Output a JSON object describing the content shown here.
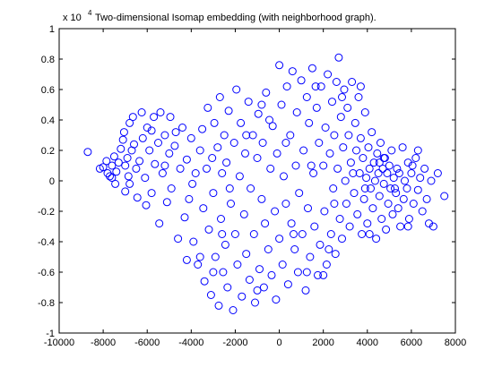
{
  "chart_data": {
    "type": "scatter",
    "title": "Two-dimensional Isomap embedding (with neighborhood graph).",
    "xlabel": "",
    "ylabel": "",
    "y_multiplier_base": "x 10",
    "y_multiplier_exponent": "4",
    "xlim": [
      -10000,
      8000
    ],
    "ylim": [
      -1,
      1
    ],
    "xticks": [
      -10000,
      -8000,
      -6000,
      -4000,
      -2000,
      0,
      2000,
      4000,
      6000,
      8000
    ],
    "yticks": [
      -1,
      -0.8,
      -0.6,
      -0.4,
      -0.2,
      0,
      0.2,
      0.4,
      0.6,
      0.8,
      1
    ],
    "xtick_labels": [
      "-10000",
      "-8000",
      "-6000",
      "-4000",
      "-2000",
      "0",
      "2000",
      "4000",
      "6000",
      "8000"
    ],
    "ytick_labels": [
      "-1",
      "-0.8",
      "-0.6",
      "-0.4",
      "-0.2",
      "0",
      "0.2",
      "0.4",
      "0.6",
      "0.8",
      "1"
    ],
    "marker": "circle-open",
    "grid": false,
    "legend": "none",
    "colors": {
      "marker": "#0000ff",
      "axes": "#000000",
      "background": "#ffffff"
    },
    "series": [
      {
        "points": [
          [
            -8700,
            0.19
          ],
          [
            -8150,
            0.08
          ],
          [
            -8000,
            0.09
          ],
          [
            -7850,
            0.13
          ],
          [
            -7700,
            0.03
          ],
          [
            -7600,
            0.1
          ],
          [
            -7500,
            0.16
          ],
          [
            -7600,
            0.02
          ],
          [
            -7450,
            -0.02
          ],
          [
            -7400,
            0.06
          ],
          [
            -7300,
            0.12
          ],
          [
            -7200,
            0.21
          ],
          [
            -7100,
            0.27
          ],
          [
            -7050,
            0.32
          ],
          [
            -7000,
            0.1
          ],
          [
            -7000,
            -0.07
          ],
          [
            -6900,
            0.15
          ],
          [
            -6850,
            0.03
          ],
          [
            -6800,
            0.38
          ],
          [
            -6700,
            0.2
          ],
          [
            -6650,
            0.42
          ],
          [
            -6600,
            0.24
          ],
          [
            -6500,
            0.08
          ],
          [
            -6450,
            -0.11
          ],
          [
            -6350,
            0.13
          ],
          [
            -6250,
            0.45
          ],
          [
            -6200,
            0.28
          ],
          [
            -6100,
            0.02
          ],
          [
            -6050,
            -0.16
          ],
          [
            -6000,
            0.35
          ],
          [
            -5900,
            0.2
          ],
          [
            -5800,
            -0.08
          ],
          [
            -5700,
            0.42
          ],
          [
            -5650,
            0.11
          ],
          [
            -5500,
            0.25
          ],
          [
            -5450,
            -0.28
          ],
          [
            -5400,
            0.45
          ],
          [
            -5300,
            0.05
          ],
          [
            -5200,
            0.3
          ],
          [
            -5100,
            -0.14
          ],
          [
            -5000,
            0.18
          ],
          [
            -4950,
            0.42
          ],
          [
            -4900,
            -0.05
          ],
          [
            -4750,
            0.23
          ],
          [
            -4600,
            -0.38
          ],
          [
            -4500,
            0.08
          ],
          [
            -4400,
            0.35
          ],
          [
            -4300,
            -0.24
          ],
          [
            -4200,
            0.14
          ],
          [
            -4100,
            -0.12
          ],
          [
            -4000,
            0.28
          ],
          [
            -3900,
            -0.4
          ],
          [
            -3800,
            0.05
          ],
          [
            -3700,
            -0.55
          ],
          [
            -3600,
            0.2
          ],
          [
            -3500,
            0.34
          ],
          [
            -3450,
            -0.18
          ],
          [
            -3400,
            -0.66
          ],
          [
            -3300,
            0.08
          ],
          [
            -3250,
            0.48
          ],
          [
            -3200,
            -0.32
          ],
          [
            -3100,
            -0.75
          ],
          [
            -3050,
            0.15
          ],
          [
            -3000,
            -0.08
          ],
          [
            -2950,
            0.38
          ],
          [
            -2900,
            -0.5
          ],
          [
            -2800,
            0.22
          ],
          [
            -2750,
            -0.82
          ],
          [
            -2700,
            0.55
          ],
          [
            -2650,
            -0.25
          ],
          [
            -2600,
            0.05
          ],
          [
            -2550,
            -0.6
          ],
          [
            -2500,
            0.3
          ],
          [
            -2450,
            -0.42
          ],
          [
            -2400,
            0.12
          ],
          [
            -2350,
            -0.7
          ],
          [
            -2300,
            0.46
          ],
          [
            -2200,
            -0.15
          ],
          [
            -2100,
            -0.85
          ],
          [
            -2050,
            0.25
          ],
          [
            -2000,
            -0.35
          ],
          [
            -1950,
            0.6
          ],
          [
            -1900,
            -0.55
          ],
          [
            -1800,
            0.03
          ],
          [
            -1750,
            0.38
          ],
          [
            -1700,
            -0.76
          ],
          [
            -1600,
            -0.22
          ],
          [
            -1550,
            0.18
          ],
          [
            -1500,
            -0.48
          ],
          [
            -1400,
            0.52
          ],
          [
            -1350,
            -0.65
          ],
          [
            -1300,
            -0.05
          ],
          [
            -1200,
            0.3
          ],
          [
            -1150,
            -0.35
          ],
          [
            -1100,
            -0.8
          ],
          [
            -1000,
            0.15
          ],
          [
            -950,
            0.44
          ],
          [
            -900,
            -0.58
          ],
          [
            -800,
            -0.12
          ],
          [
            -750,
            0.25
          ],
          [
            -700,
            -0.7
          ],
          [
            -650,
            -0.28
          ],
          [
            -600,
            0.58
          ],
          [
            -500,
            -0.45
          ],
          [
            -400,
            0.08
          ],
          [
            -350,
            -0.62
          ],
          [
            -300,
            0.36
          ],
          [
            -200,
            -0.2
          ],
          [
            -150,
            -0.78
          ],
          [
            -100,
            0.18
          ],
          [
            0,
            0.76
          ],
          [
            0,
            -0.38
          ],
          [
            100,
            0.5
          ],
          [
            150,
            -0.55
          ],
          [
            200,
            0.03
          ],
          [
            300,
            -0.15
          ],
          [
            350,
            0.62
          ],
          [
            400,
            -0.68
          ],
          [
            500,
            0.3
          ],
          [
            550,
            -0.28
          ],
          [
            600,
            0.72
          ],
          [
            700,
            -0.45
          ],
          [
            750,
            0.1
          ],
          [
            800,
            0.45
          ],
          [
            850,
            -0.6
          ],
          [
            900,
            -0.08
          ],
          [
            1000,
            0.66
          ],
          [
            1050,
            -0.35
          ],
          [
            1100,
            0.2
          ],
          [
            1200,
            -0.72
          ],
          [
            1250,
            0.55
          ],
          [
            1300,
            -0.18
          ],
          [
            1350,
            0.38
          ],
          [
            1400,
            -0.5
          ],
          [
            1500,
            0.74
          ],
          [
            1550,
            0.05
          ],
          [
            1600,
            -0.3
          ],
          [
            1700,
            0.48
          ],
          [
            1750,
            -0.62
          ],
          [
            1800,
            0.25
          ],
          [
            1850,
            -0.42
          ],
          [
            1900,
            0.62
          ],
          [
            2000,
            0.1
          ],
          [
            2050,
            -0.2
          ],
          [
            2100,
            0.35
          ],
          [
            2150,
            -0.55
          ],
          [
            2200,
            0.7
          ],
          [
            2300,
            0.18
          ],
          [
            2350,
            -0.35
          ],
          [
            2400,
            0.52
          ],
          [
            2450,
            -0.05
          ],
          [
            2500,
            0.3
          ],
          [
            2550,
            -0.48
          ],
          [
            2600,
            0.65
          ],
          [
            2650,
            0.08
          ],
          [
            2700,
            0.81
          ],
          [
            2750,
            -0.25
          ],
          [
            2800,
            0.42
          ],
          [
            2850,
            -0.38
          ],
          [
            2900,
            0.22
          ],
          [
            2950,
            0.6
          ],
          [
            3000,
            0.0
          ],
          [
            3050,
            -0.15
          ],
          [
            3100,
            0.48
          ],
          [
            3150,
            0.3
          ],
          [
            3200,
            -0.3
          ],
          [
            3250,
            0.12
          ],
          [
            3300,
            0.65
          ],
          [
            3400,
            -0.08
          ],
          [
            3450,
            0.38
          ],
          [
            3500,
            0.2
          ],
          [
            3550,
            -0.22
          ],
          [
            3600,
            0.55
          ],
          [
            3650,
            0.05
          ],
          [
            3700,
            0.28
          ],
          [
            3750,
            -0.35
          ],
          [
            3800,
            0.15
          ],
          [
            3850,
            -0.12
          ],
          [
            3900,
            0.45
          ],
          [
            3950,
            0.02
          ],
          [
            4000,
            -0.28
          ],
          [
            4050,
            0.22
          ],
          [
            4100,
            0.08
          ],
          [
            4150,
            -0.05
          ],
          [
            4200,
            0.32
          ],
          [
            4250,
            -0.18
          ],
          [
            4300,
            0.12
          ],
          [
            4350,
            0.0
          ],
          [
            4400,
            -0.38
          ],
          [
            4450,
            0.18
          ],
          [
            4500,
            0.05
          ],
          [
            4550,
            -0.1
          ],
          [
            4600,
            0.25
          ],
          [
            4650,
            -0.25
          ],
          [
            4700,
            0.08
          ],
          [
            4750,
            -0.02
          ],
          [
            4800,
            0.15
          ],
          [
            4850,
            -0.32
          ],
          [
            4900,
            0.05
          ],
          [
            4950,
            -0.15
          ],
          [
            5000,
            0.1
          ],
          [
            5050,
            -0.05
          ],
          [
            5100,
            0.2
          ],
          [
            5150,
            -0.22
          ],
          [
            5200,
            0.02
          ],
          [
            5300,
            -0.08
          ],
          [
            5350,
            0.08
          ],
          [
            5400,
            -0.18
          ],
          [
            5450,
            0.05
          ],
          [
            5500,
            -0.3
          ],
          [
            5600,
            0.22
          ],
          [
            5650,
            -0.12
          ],
          [
            5700,
            0.0
          ],
          [
            5800,
            -0.05
          ],
          [
            5850,
            0.12
          ],
          [
            5900,
            -0.25
          ],
          [
            6000,
            0.05
          ],
          [
            6100,
            -0.15
          ],
          [
            6200,
            0.15
          ],
          [
            6300,
            -0.06
          ],
          [
            6400,
            0.02
          ],
          [
            6500,
            -0.2
          ],
          [
            6600,
            0.08
          ],
          [
            6700,
            -0.12
          ],
          [
            6800,
            -0.28
          ],
          [
            6900,
            0.0
          ],
          [
            7000,
            -0.3
          ],
          [
            7200,
            0.05
          ],
          [
            7500,
            -0.1
          ],
          [
            -5200,
            0.1
          ],
          [
            -4700,
            0.32
          ],
          [
            -3950,
            -0.02
          ],
          [
            -3000,
            -0.6
          ],
          [
            -2250,
            -0.05
          ],
          [
            -1000,
            -0.72
          ],
          [
            -450,
            0.4
          ],
          [
            650,
            -0.35
          ],
          [
            1250,
            -0.6
          ],
          [
            1650,
            0.62
          ],
          [
            2250,
            -0.45
          ],
          [
            2850,
            0.55
          ],
          [
            3350,
            0.05
          ],
          [
            4100,
            -0.35
          ],
          [
            4550,
            0.12
          ],
          [
            5250,
            -0.05
          ],
          [
            6050,
            0.1
          ],
          [
            -6800,
            -0.02
          ],
          [
            -5800,
            0.33
          ],
          [
            -2600,
            -0.35
          ],
          [
            1450,
            0.1
          ],
          [
            3700,
            0.62
          ],
          [
            4750,
            0.15
          ],
          [
            -1500,
            0.3
          ],
          [
            300,
            0.25
          ],
          [
            -3600,
            -0.5
          ],
          [
            2000,
            -0.62
          ],
          [
            5850,
            -0.3
          ],
          [
            -7800,
            0.05
          ],
          [
            -4200,
            -0.52
          ],
          [
            -800,
            0.5
          ],
          [
            2500,
            -0.15
          ],
          [
            3900,
            -0.05
          ],
          [
            6300,
            0.2
          ]
        ]
      }
    ]
  }
}
